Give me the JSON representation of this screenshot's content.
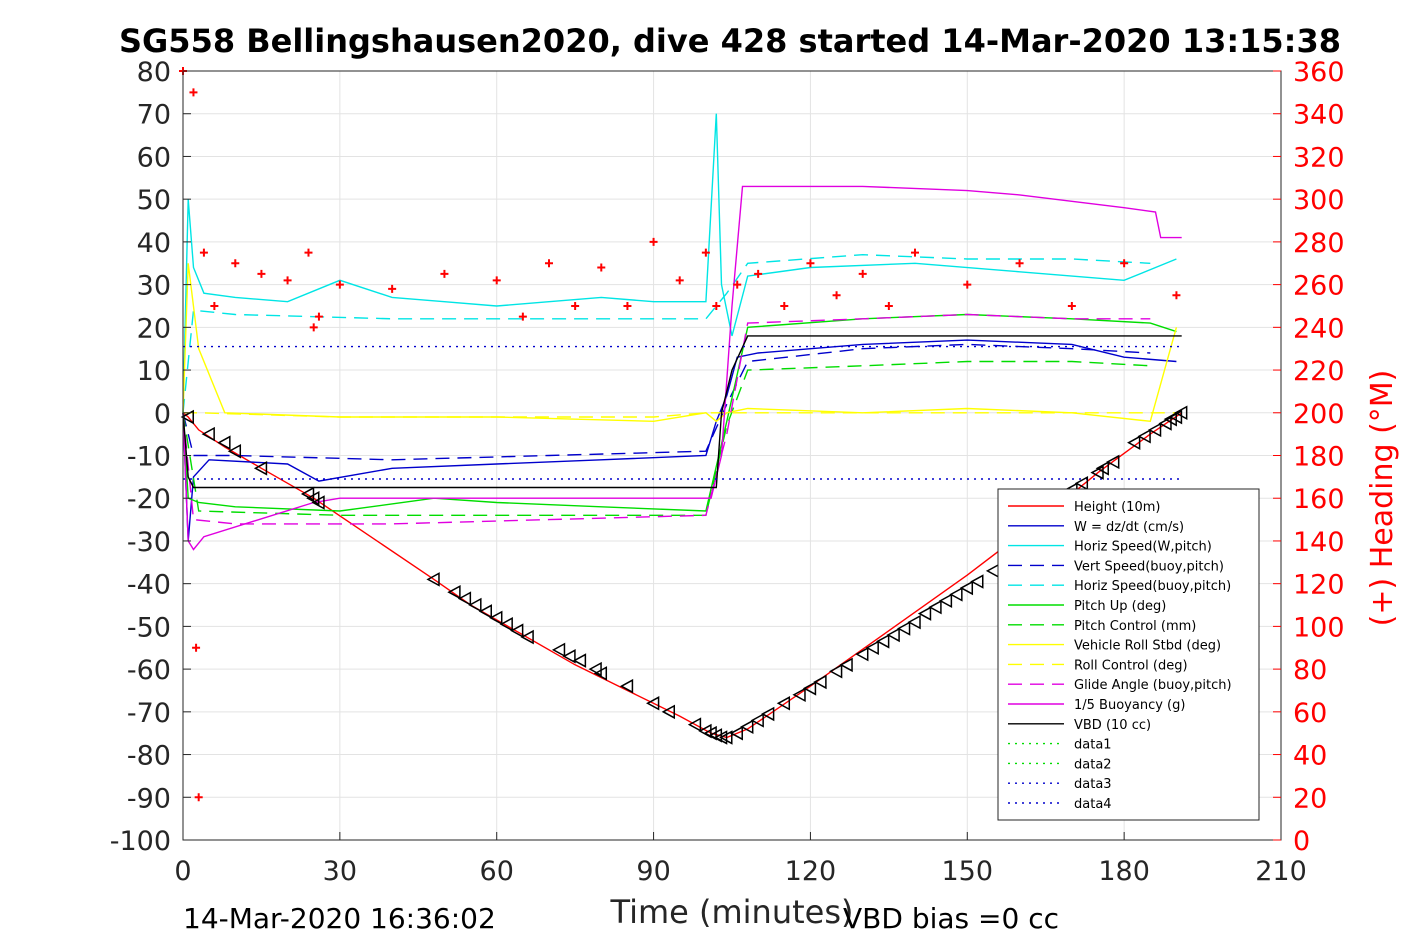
{
  "chart_data": {
    "type": "line",
    "title": "SG558 Bellingshausen2020, dive 428 started 14-Mar-2020 13:15:38",
    "xlabel": "Time (minutes)",
    "ylabel_left": "",
    "ylabel_right": "(+) Heading (°M)",
    "xlim": [
      0,
      210
    ],
    "ylim_left": [
      -100,
      80
    ],
    "ylim_right": [
      0,
      360
    ],
    "x_ticks": [
      0,
      30,
      60,
      90,
      120,
      150,
      180,
      210
    ],
    "y_left_ticks": [
      80,
      70,
      60,
      50,
      40,
      30,
      20,
      10,
      0,
      -10,
      -20,
      -30,
      -40,
      -50,
      -60,
      -70,
      -80,
      -90,
      -100
    ],
    "y_right_ticks": [
      360,
      340,
      320,
      300,
      280,
      260,
      240,
      220,
      200,
      180,
      160,
      140,
      120,
      100,
      80,
      60,
      40,
      20,
      0
    ],
    "grid": true,
    "legend_position": "lower-right",
    "footer_left": "14-Mar-2020 16:36:02",
    "footer_right": "VBD bias =0 cc",
    "series": [
      {
        "name": "Height (10m)",
        "color": "#ff0000",
        "style": "solid",
        "x": [
          0,
          1,
          3,
          8,
          15,
          25,
          48,
          55,
          65,
          75,
          85,
          95,
          101,
          104,
          108,
          120,
          135,
          150,
          165,
          175,
          185,
          191
        ],
        "y": [
          0,
          -1,
          -4,
          -8,
          -13,
          -20,
          -39,
          -45,
          -52,
          -59,
          -65,
          -71,
          -75,
          -76,
          -74,
          -64,
          -51,
          -38,
          -24,
          -14,
          -5,
          0
        ]
      },
      {
        "name": "W = dz/dt (cm/s)",
        "color": "#0000cc",
        "style": "solid",
        "x": [
          0,
          1,
          2,
          5,
          20,
          26,
          40,
          60,
          80,
          100,
          102,
          104,
          106,
          110,
          130,
          150,
          170,
          180,
          190
        ],
        "y": [
          0,
          -30,
          -15,
          -11,
          -12,
          -16,
          -13,
          -12,
          -11,
          -10,
          -2,
          4,
          13,
          14,
          16,
          17,
          16,
          13,
          12
        ]
      },
      {
        "name": "Horiz Speed(W,pitch)",
        "color": "#00e5e5",
        "style": "solid",
        "x": [
          0,
          1,
          2,
          4,
          10,
          20,
          30,
          40,
          50,
          60,
          70,
          80,
          90,
          100,
          102,
          103,
          105,
          108,
          120,
          140,
          160,
          180,
          190
        ],
        "y": [
          0,
          50,
          34,
          28,
          27,
          26,
          31,
          27,
          26,
          25,
          26,
          27,
          26,
          26,
          70,
          30,
          18,
          32,
          34,
          35,
          33,
          31,
          36
        ]
      },
      {
        "name": "Vert Speed(buoy,pitch)",
        "color": "#0000cc",
        "style": "dashed",
        "x": [
          0,
          2,
          10,
          40,
          70,
          100,
          104,
          108,
          130,
          150,
          170,
          185
        ],
        "y": [
          0,
          -10,
          -10,
          -11,
          -10,
          -9,
          2,
          12,
          15,
          16,
          15,
          14
        ]
      },
      {
        "name": "Horiz Speed(buoy,pitch)",
        "color": "#00e5e5",
        "style": "dashed",
        "x": [
          0,
          2,
          10,
          40,
          70,
          100,
          104,
          108,
          130,
          150,
          170,
          185
        ],
        "y": [
          0,
          24,
          23,
          22,
          22,
          22,
          28,
          35,
          37,
          36,
          36,
          35
        ]
      },
      {
        "name": "Pitch Up (deg)",
        "color": "#00dd00",
        "style": "solid",
        "x": [
          0,
          1,
          3,
          10,
          30,
          48,
          60,
          80,
          100,
          104,
          108,
          130,
          150,
          170,
          185,
          190
        ],
        "y": [
          0,
          -20,
          -21,
          -22,
          -23,
          -20,
          -21,
          -22,
          -23,
          -2,
          20,
          22,
          23,
          22,
          21,
          19
        ]
      },
      {
        "name": "Pitch Control (mm)",
        "color": "#00dd00",
        "style": "dashed",
        "x": [
          0,
          3,
          30,
          60,
          100,
          104,
          108,
          130,
          150,
          170,
          185
        ],
        "y": [
          0,
          -23,
          -24,
          -24,
          -24,
          -3,
          10,
          11,
          12,
          12,
          11
        ]
      },
      {
        "name": "Vehicle Roll Stbd (deg)",
        "color": "#ffff00",
        "style": "solid",
        "x": [
          0,
          1,
          3,
          8,
          30,
          60,
          90,
          100,
          102,
          104,
          108,
          130,
          150,
          170,
          185,
          190
        ],
        "y": [
          0,
          35,
          15,
          0,
          -1,
          -1,
          -2,
          0,
          -2,
          0,
          1,
          0,
          1,
          0,
          -2,
          20
        ]
      },
      {
        "name": "Roll Control (deg)",
        "color": "#ffff00",
        "style": "dashed",
        "x": [
          0,
          3,
          30,
          60,
          90,
          100,
          104,
          108,
          130,
          150,
          170,
          190
        ],
        "y": [
          0,
          0,
          -1,
          -1,
          -1,
          0,
          0,
          0,
          0,
          0,
          0,
          0
        ]
      },
      {
        "name": "Glide Angle (buoy,pitch)",
        "color": "#e000e0",
        "style": "dashed",
        "x": [
          0,
          2,
          10,
          40,
          70,
          100,
          104,
          108,
          130,
          150,
          170,
          185
        ],
        "y": [
          0,
          -25,
          -26,
          -26,
          -25,
          -24,
          -5,
          21,
          22,
          23,
          22,
          22
        ]
      },
      {
        "name": "1/5 Buoyancy (g)",
        "color": "#e000e0",
        "style": "solid",
        "x": [
          0,
          1,
          2,
          4,
          25,
          30,
          60,
          90,
          101,
          103,
          105,
          107,
          130,
          150,
          160,
          180,
          186,
          187,
          191
        ],
        "y": [
          0,
          -30,
          -32,
          -29,
          -21,
          -20,
          -20,
          -20,
          -20,
          -10,
          25,
          53,
          53,
          52,
          51,
          48,
          47,
          41,
          41
        ]
      },
      {
        "name": "VBD (10 cc)",
        "color": "#000000",
        "style": "solid",
        "x": [
          0,
          1,
          2,
          102,
          103,
          105,
          108,
          191
        ],
        "y": [
          0,
          -15,
          -17.5,
          -17.5,
          0,
          10,
          18,
          18
        ]
      },
      {
        "name": "data1",
        "color": "#00dd00",
        "style": "dotted",
        "x": [],
        "y": []
      },
      {
        "name": "data2",
        "color": "#00dd00",
        "style": "dotted",
        "x": [],
        "y": []
      },
      {
        "name": "data3",
        "color": "#0000cc",
        "style": "dotted",
        "x": [
          0,
          191
        ],
        "y": [
          15.5,
          15.5
        ]
      },
      {
        "name": "data4",
        "color": "#0000cc",
        "style": "dotted",
        "x": [
          0,
          191
        ],
        "y": [
          -15.5,
          -15.5
        ]
      }
    ],
    "heading_markers": {
      "color": "#ff0000",
      "marker": "plus",
      "x": [
        0,
        2,
        2.5,
        3,
        4,
        6,
        10,
        15,
        20,
        24,
        25,
        26,
        30,
        40,
        50,
        60,
        65,
        70,
        75,
        80,
        85,
        90,
        95,
        100,
        102,
        106,
        110,
        115,
        120,
        125,
        130,
        135,
        140,
        150,
        160,
        170,
        180,
        190
      ],
      "y": [
        360,
        350,
        90,
        20,
        275,
        250,
        270,
        265,
        262,
        275,
        240,
        245,
        260,
        258,
        265,
        262,
        245,
        270,
        250,
        268,
        250,
        280,
        262,
        275,
        250,
        260,
        265,
        250,
        270,
        255,
        265,
        250,
        275,
        260,
        270,
        250,
        270,
        255
      ]
    },
    "depth_markers": {
      "color": "#000000",
      "marker": "triangle",
      "x": [
        1,
        5,
        8,
        10,
        15,
        24,
        25,
        26,
        48,
        52,
        54,
        56,
        58,
        60,
        62,
        64,
        66,
        72,
        74,
        76,
        79,
        80,
        85,
        90,
        93,
        98,
        100,
        101,
        102,
        103,
        104,
        106,
        108,
        110,
        112,
        115,
        118,
        120,
        122,
        125,
        127,
        130,
        132,
        134,
        136,
        138,
        140,
        142,
        144,
        146,
        148,
        150,
        152,
        155,
        170,
        172,
        175,
        176,
        178,
        182,
        184,
        186,
        188,
        189,
        190,
        191
      ],
      "y": [
        -1,
        -5,
        -7,
        -9,
        -13,
        -19,
        -20,
        -21,
        -39,
        -42,
        -43.5,
        -45,
        -46.5,
        -48,
        -49.5,
        -51,
        -52.5,
        -55.5,
        -57,
        -58,
        -60,
        -61,
        -64,
        -68,
        -70,
        -73,
        -74.5,
        -75,
        -75.5,
        -76,
        -76,
        -75,
        -73.5,
        -72,
        -70.5,
        -68,
        -66,
        -64.5,
        -63,
        -60.5,
        -59,
        -56.5,
        -55,
        -53.5,
        -52,
        -50.5,
        -49,
        -47,
        -45.5,
        -44,
        -42.5,
        -41,
        -39.5,
        -37,
        -18,
        -16.5,
        -14,
        -13,
        -11.5,
        -7,
        -5.5,
        -4,
        -2.5,
        -1.5,
        -1,
        0
      ]
    }
  }
}
